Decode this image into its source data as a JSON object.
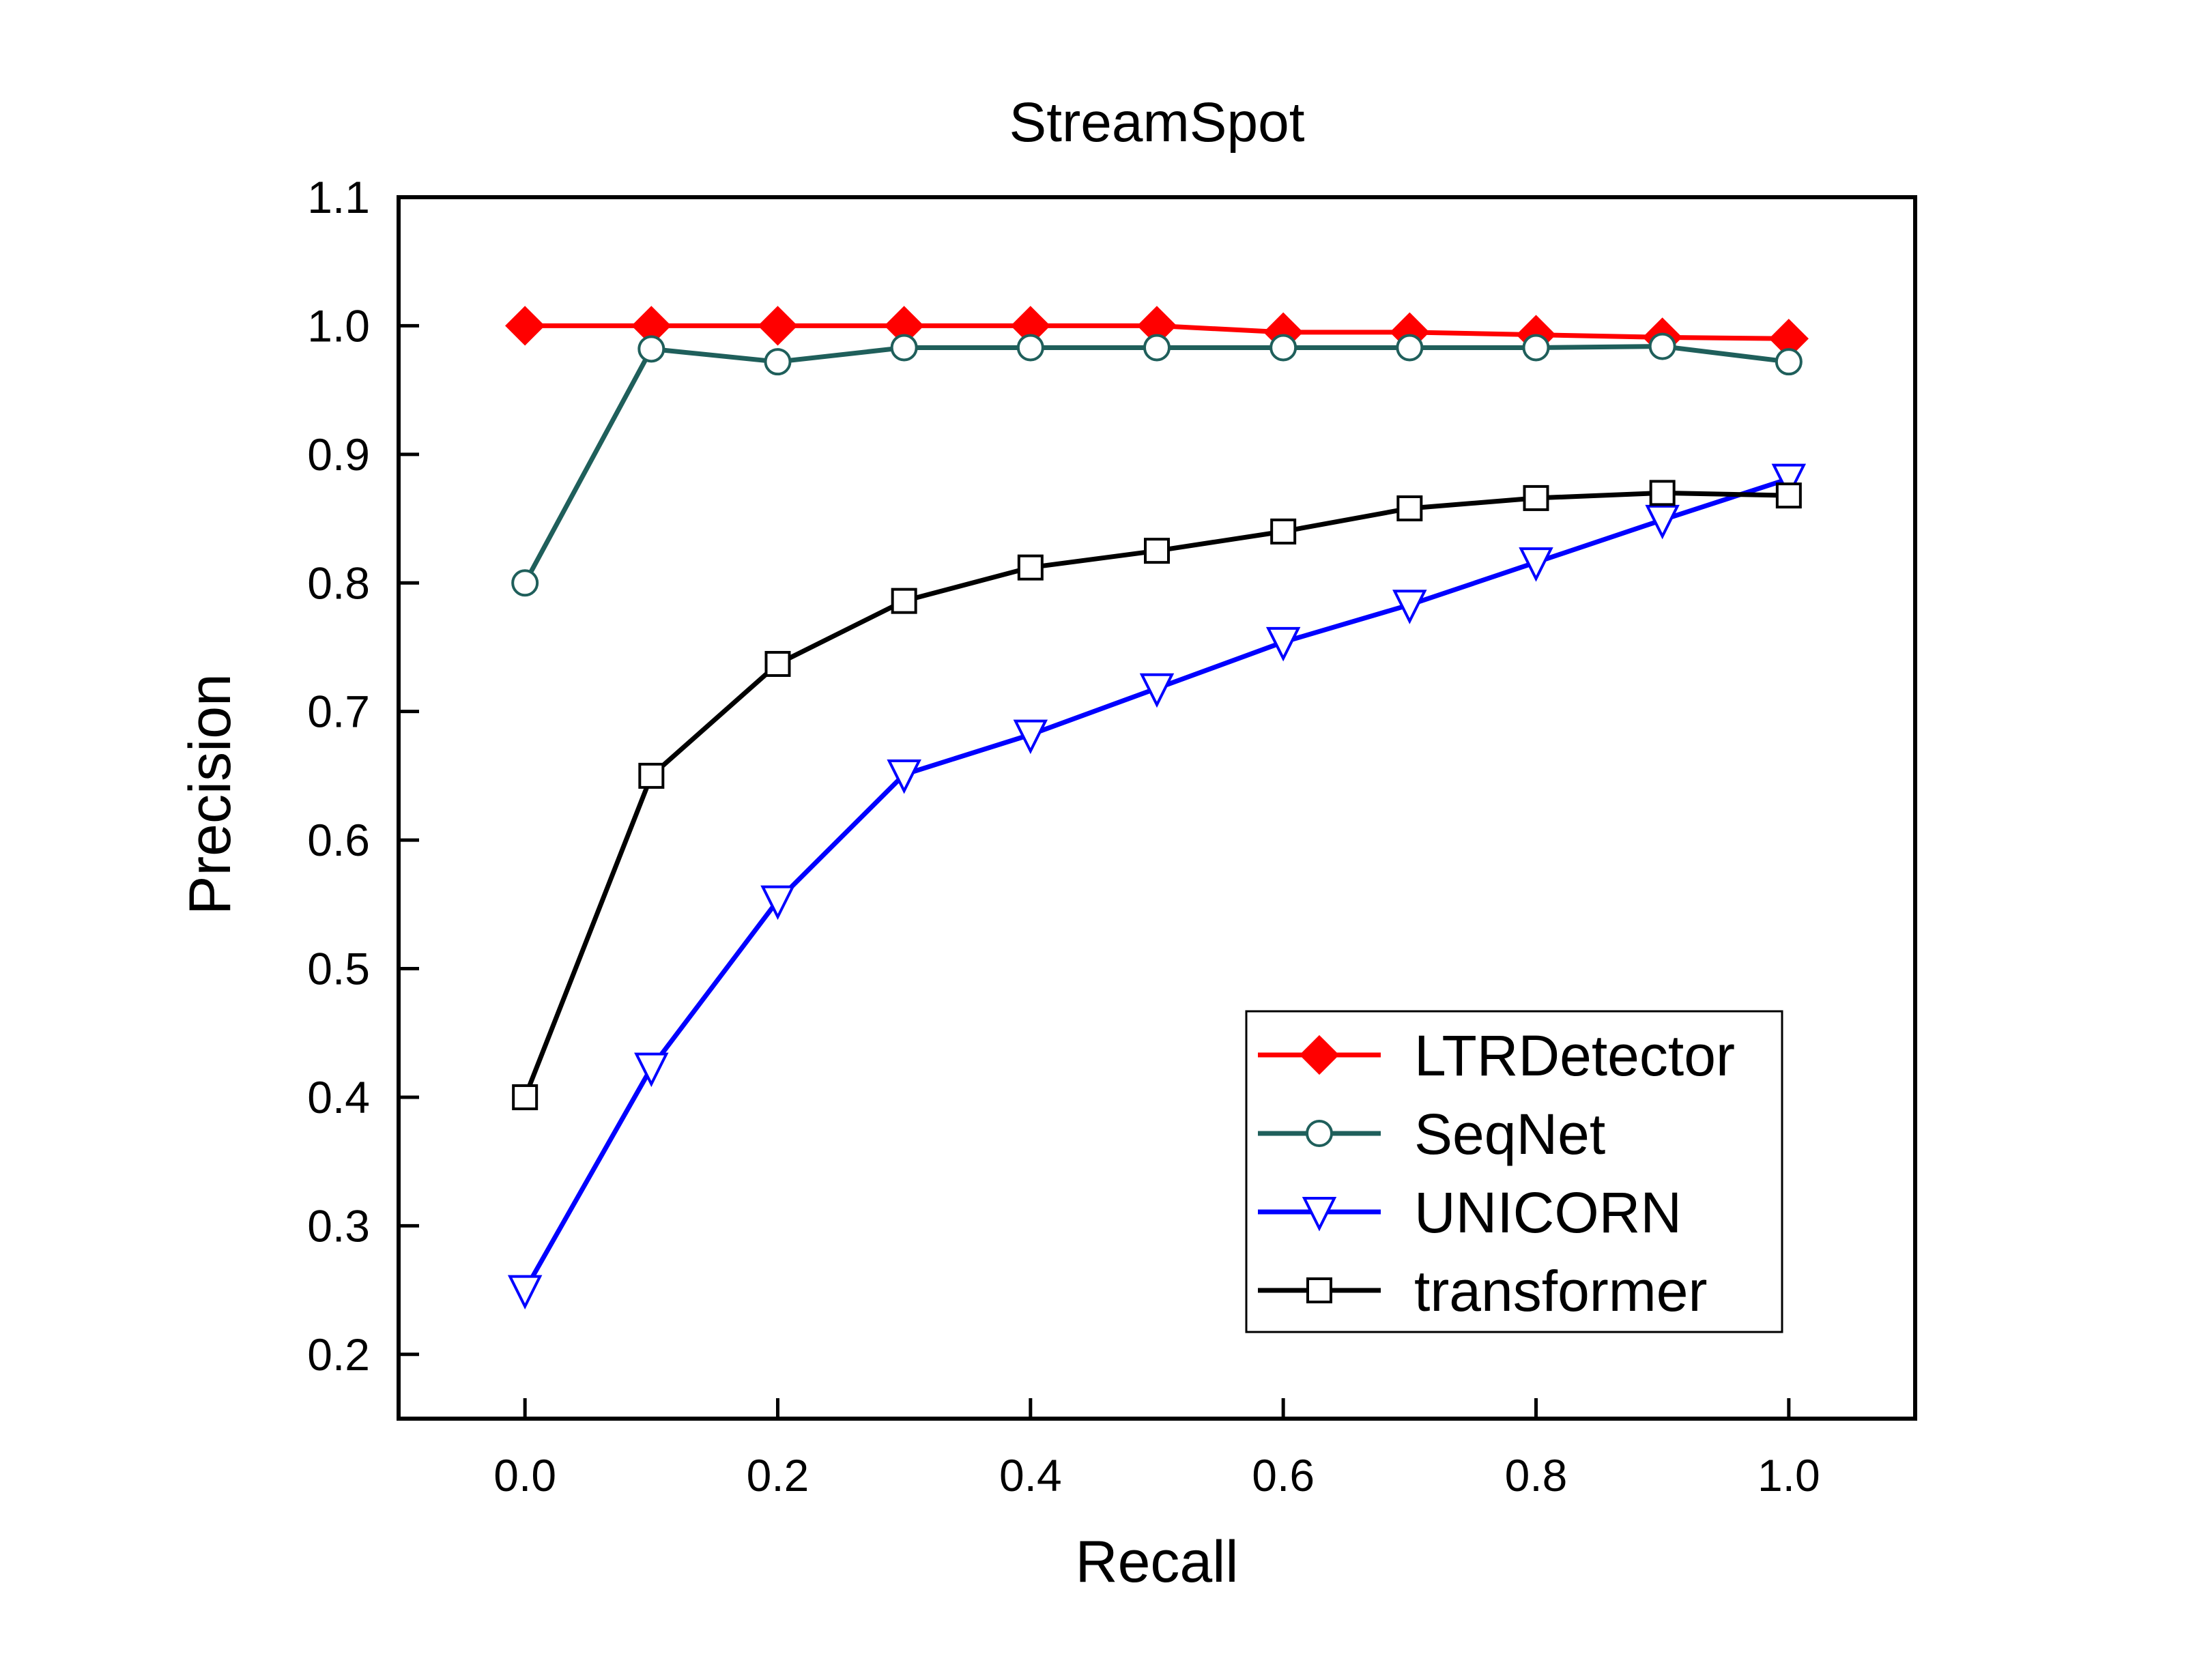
{
  "chart_data": {
    "type": "line",
    "title": "StreamSpot",
    "xlabel": "Recall",
    "ylabel": "Precision",
    "xlim": [
      -0.1,
      1.1
    ],
    "ylim": [
      0.15,
      1.1
    ],
    "x_ticks": [
      "0.0",
      "0.2",
      "0.4",
      "0.6",
      "0.8",
      "1.0"
    ],
    "y_ticks": [
      "0.2",
      "0.3",
      "0.4",
      "0.5",
      "0.6",
      "0.7",
      "0.8",
      "0.9",
      "1.0",
      "1.1"
    ],
    "grid": false,
    "legend_position": "bottom-right",
    "x": [
      0.0,
      0.1,
      0.2,
      0.3,
      0.4,
      0.5,
      0.6,
      0.7,
      0.8,
      0.9,
      1.0
    ],
    "series": [
      {
        "name": "LTRDetector",
        "color": "#ff0000",
        "marker": "filled-diamond",
        "values": [
          1.0,
          1.0,
          1.0,
          1.0,
          1.0,
          1.0,
          0.995,
          0.995,
          0.993,
          0.991,
          0.99
        ]
      },
      {
        "name": "SeqNet",
        "color": "#1f5f5b",
        "marker": "open-circle",
        "values": [
          0.8,
          0.982,
          0.972,
          0.983,
          0.983,
          0.983,
          0.983,
          0.983,
          0.983,
          0.984,
          0.972
        ]
      },
      {
        "name": "UNICORN",
        "color": "#0000ff",
        "marker": "open-triangle-down",
        "values": [
          0.25,
          0.423,
          0.553,
          0.651,
          0.682,
          0.718,
          0.754,
          0.783,
          0.816,
          0.849,
          0.881
        ]
      },
      {
        "name": "transformer",
        "color": "#000000",
        "marker": "open-square",
        "values": [
          0.4,
          0.65,
          0.737,
          0.786,
          0.812,
          0.825,
          0.84,
          0.858,
          0.866,
          0.87,
          0.868
        ]
      }
    ]
  }
}
